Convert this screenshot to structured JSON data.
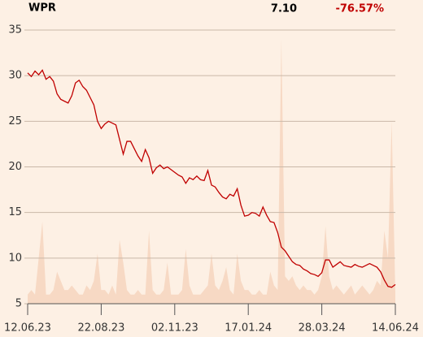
{
  "chart_data": {
    "type": "line",
    "title": "WPR",
    "last_price": "7.10",
    "change": "-76.57%",
    "categories": [
      "12.06.23",
      null,
      null,
      null,
      null,
      null,
      null,
      null,
      null,
      null,
      null,
      null,
      null,
      null,
      null,
      null,
      null,
      null,
      null,
      null,
      "22.08.23",
      null,
      null,
      null,
      null,
      null,
      null,
      null,
      null,
      null,
      null,
      null,
      null,
      null,
      null,
      null,
      null,
      null,
      null,
      null,
      "02.11.23",
      null,
      null,
      null,
      null,
      null,
      null,
      null,
      null,
      null,
      null,
      null,
      null,
      null,
      null,
      null,
      null,
      null,
      null,
      null,
      "17.01.24",
      null,
      null,
      null,
      null,
      null,
      null,
      null,
      null,
      null,
      null,
      null,
      null,
      null,
      null,
      null,
      null,
      null,
      null,
      null,
      "28.03.24",
      null,
      null,
      null,
      null,
      null,
      null,
      null,
      null,
      null,
      null,
      null,
      null,
      null,
      null,
      null,
      null,
      null,
      null,
      null,
      "14.06.24"
    ],
    "series": [
      {
        "name": "WPR",
        "kind": "line",
        "color": "#c00000",
        "values": [
          30.3,
          29.9,
          30.5,
          30.1,
          30.6,
          29.6,
          29.9,
          29.4,
          28.0,
          27.4,
          27.2,
          27.0,
          27.8,
          29.2,
          29.5,
          28.8,
          28.4,
          27.6,
          26.8,
          25.0,
          24.2,
          24.7,
          25.0,
          24.8,
          24.6,
          23.0,
          21.4,
          22.8,
          22.8,
          22.0,
          21.2,
          20.6,
          21.9,
          21.0,
          19.3,
          19.9,
          20.2,
          19.8,
          20.0,
          19.7,
          19.4,
          19.1,
          18.9,
          18.2,
          18.8,
          18.6,
          19.0,
          18.6,
          18.5,
          19.6,
          18.0,
          17.8,
          17.2,
          16.7,
          16.5,
          17.0,
          16.8,
          17.6,
          15.8,
          14.6,
          14.7,
          15.0,
          14.9,
          14.6,
          15.6,
          14.7,
          14.0,
          13.9,
          12.8,
          11.2,
          10.8,
          10.2,
          9.6,
          9.3,
          9.2,
          8.8,
          8.6,
          8.3,
          8.2,
          8.0,
          8.4,
          9.8,
          9.8,
          9.0,
          9.3,
          9.6,
          9.2,
          9.1,
          9.0,
          9.3,
          9.1,
          9.0,
          9.2,
          9.4,
          9.2,
          9.0,
          8.5,
          7.6,
          6.9,
          6.8,
          7.1
        ]
      },
      {
        "name": "Volume",
        "kind": "area",
        "color": "#f7d9c4",
        "values": [
          6,
          6.5,
          6,
          10,
          14,
          6,
          6,
          6.5,
          8.5,
          7.5,
          6.5,
          6.5,
          7,
          6.5,
          6,
          6,
          7,
          6.5,
          7.5,
          10.5,
          6.5,
          6.5,
          6,
          7,
          6,
          12,
          9.5,
          6.5,
          6,
          6,
          6.5,
          6,
          6,
          13,
          6.5,
          6,
          6,
          6.5,
          9.5,
          6,
          6,
          6,
          6.5,
          11,
          7,
          6,
          6,
          6,
          6.5,
          7,
          10.5,
          7,
          6.5,
          7.5,
          9,
          6.5,
          6,
          10.5,
          7.5,
          6.5,
          6.5,
          6,
          6,
          6.5,
          6,
          6,
          8.5,
          7,
          6.5,
          34,
          8,
          7.5,
          8,
          7,
          6.5,
          7,
          6.5,
          6.5,
          6,
          6.5,
          8,
          13.5,
          8,
          6.5,
          7,
          6.5,
          6,
          6.5,
          7,
          6,
          6.5,
          7,
          6.5,
          6,
          6.5,
          7.5,
          7,
          13,
          10,
          25,
          6
        ]
      }
    ],
    "ylim": [
      5,
      35
    ],
    "yticks": [
      5,
      10,
      15,
      20,
      25,
      30,
      35
    ],
    "grid": true
  }
}
